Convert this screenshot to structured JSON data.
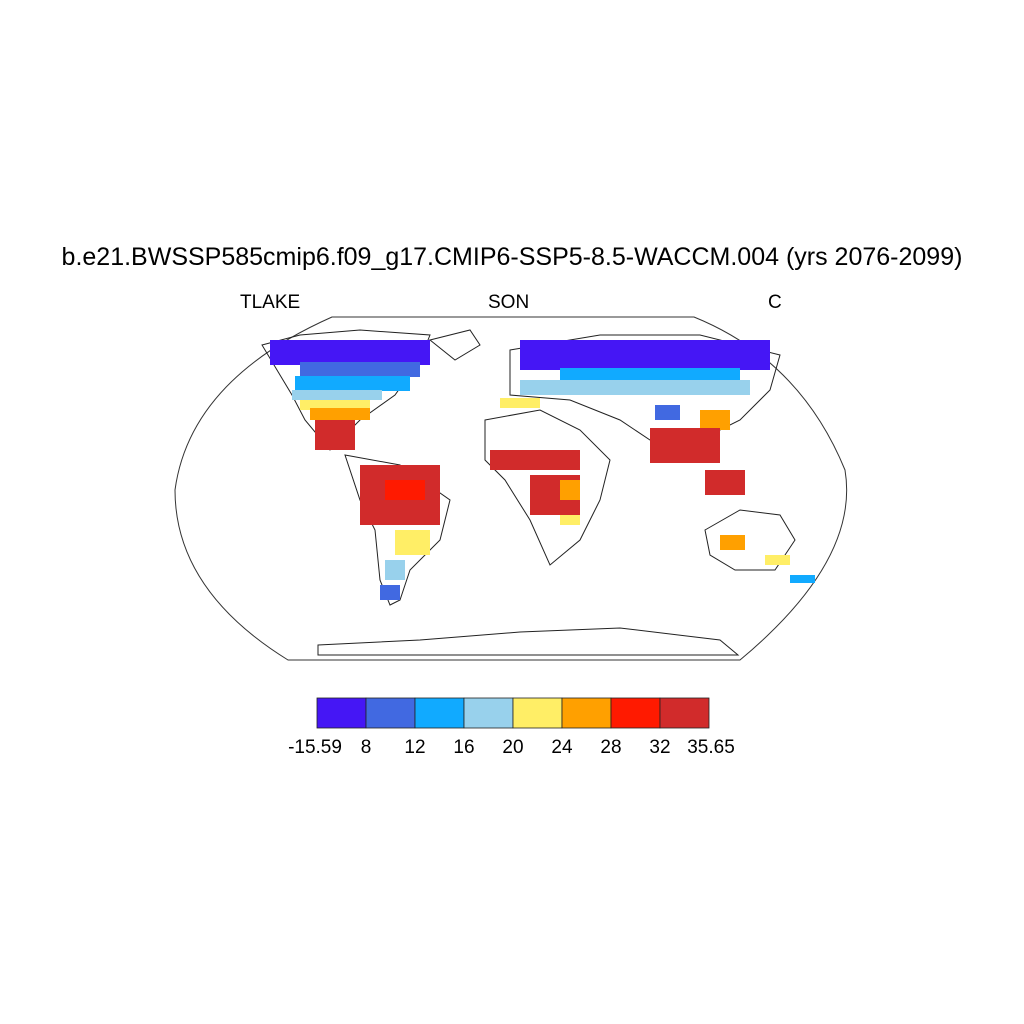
{
  "title": "b.e21.BWSSP585cmip6.f09_g17.CMIP6-SSP5-8.5-WACCM.004 (yrs 2076-2099)",
  "subtitle_left": "TLAKE",
  "subtitle_center": "SON",
  "subtitle_right": "C",
  "colorbar": {
    "colors": [
      "#4516F5",
      "#4169E1",
      "#11AAFF",
      "#98D1EC",
      "#FFEE66",
      "#FFA000",
      "#FF1A00",
      "#D12B2B"
    ],
    "labels": [
      "-15.59",
      "8",
      "12",
      "16",
      "20",
      "24",
      "28",
      "32",
      "35.65"
    ]
  }
}
